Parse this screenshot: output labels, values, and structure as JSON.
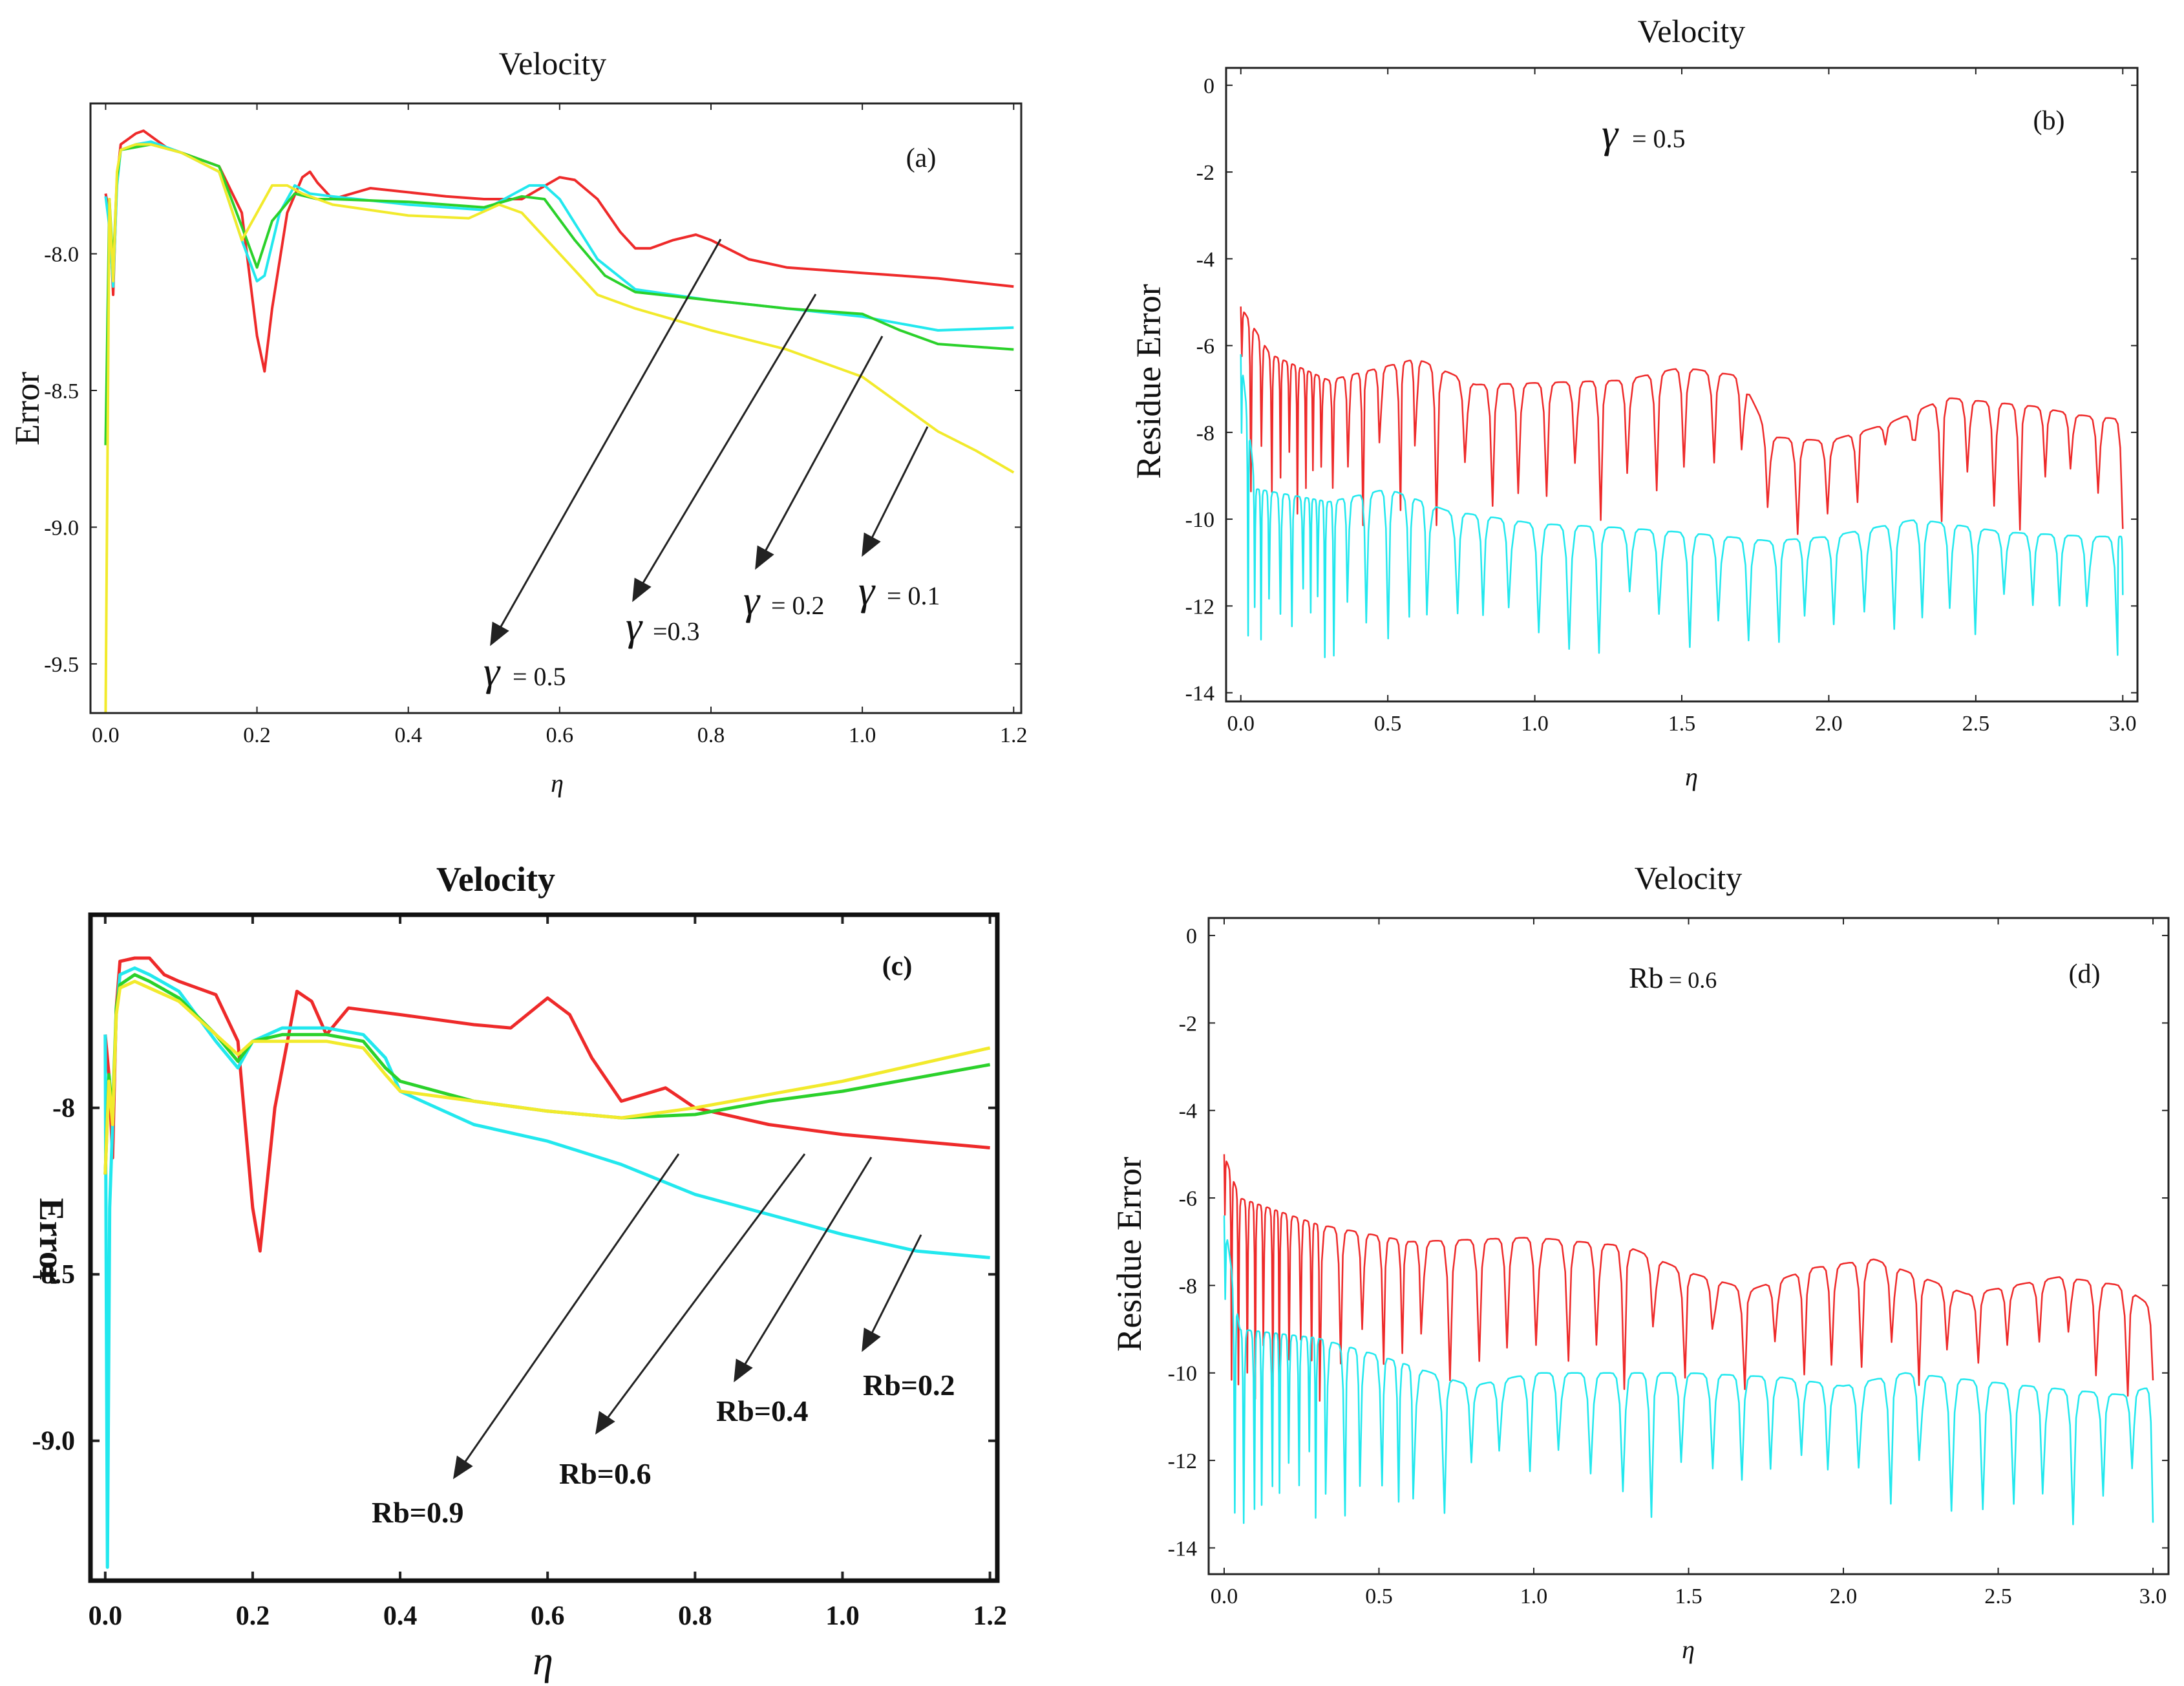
{
  "colors": {
    "red": "#ee2a2a",
    "cyan": "#22e8ee",
    "green": "#2bd12b",
    "yellow": "#f2ea2c",
    "arrow": "#222222",
    "frame": "#222222"
  },
  "chart_data": [
    {
      "panel": "(a)",
      "type": "line",
      "title": "Velocity",
      "xlabel": "η",
      "ylabel": "Error",
      "xlim": [
        -0.02,
        1.21
      ],
      "ylim": [
        -9.68,
        -7.45
      ],
      "xticks": [
        "0.0",
        "0.2",
        "0.4",
        "0.6",
        "0.8",
        "1.0",
        "1.2"
      ],
      "yticks": [
        "-8.0",
        "-8.5",
        "-9.0",
        "-9.5"
      ],
      "series": [
        {
          "name": "γ = 0.5",
          "color": "red",
          "x": [
            0.0,
            0.005,
            0.01,
            0.015,
            0.02,
            0.03,
            0.04,
            0.05,
            0.06,
            0.08,
            0.1,
            0.15,
            0.18,
            0.2,
            0.21,
            0.22,
            0.24,
            0.26,
            0.27,
            0.28,
            0.3,
            0.35,
            0.45,
            0.5,
            0.55,
            0.6,
            0.62,
            0.65,
            0.68,
            0.7,
            0.72,
            0.75,
            0.78,
            0.8,
            0.85,
            0.9,
            1.0,
            1.1,
            1.2
          ],
          "y": [
            -7.78,
            -7.85,
            -8.15,
            -7.72,
            -7.6,
            -7.58,
            -7.56,
            -7.55,
            -7.57,
            -7.61,
            -7.63,
            -7.68,
            -7.85,
            -8.3,
            -8.43,
            -8.2,
            -7.85,
            -7.72,
            -7.7,
            -7.74,
            -7.8,
            -7.76,
            -7.79,
            -7.8,
            -7.8,
            -7.72,
            -7.73,
            -7.8,
            -7.92,
            -7.98,
            -7.98,
            -7.95,
            -7.93,
            -7.95,
            -8.02,
            -8.05,
            -8.07,
            -8.09,
            -8.12
          ]
        },
        {
          "name": "γ = 0.3",
          "color": "cyan",
          "x": [
            0.0,
            0.005,
            0.01,
            0.015,
            0.02,
            0.04,
            0.06,
            0.1,
            0.15,
            0.18,
            0.2,
            0.21,
            0.23,
            0.25,
            0.27,
            0.3,
            0.4,
            0.5,
            0.56,
            0.58,
            0.6,
            0.65,
            0.7,
            0.8,
            0.9,
            1.0,
            1.1,
            1.2
          ],
          "y": [
            -7.79,
            -7.9,
            -8.12,
            -7.75,
            -7.62,
            -7.6,
            -7.59,
            -7.63,
            -7.7,
            -7.95,
            -8.1,
            -8.08,
            -7.85,
            -7.75,
            -7.78,
            -7.79,
            -7.82,
            -7.84,
            -7.75,
            -7.75,
            -7.8,
            -8.02,
            -8.13,
            -8.17,
            -8.2,
            -8.23,
            -8.28,
            -8.27
          ]
        },
        {
          "name": "γ = 0.2",
          "color": "green",
          "x": [
            0.0,
            0.005,
            0.01,
            0.015,
            0.02,
            0.04,
            0.06,
            0.1,
            0.15,
            0.18,
            0.2,
            0.22,
            0.25,
            0.28,
            0.3,
            0.4,
            0.5,
            0.55,
            0.58,
            0.62,
            0.66,
            0.7,
            0.8,
            0.9,
            1.0,
            1.05,
            1.1,
            1.2
          ],
          "y": [
            -8.7,
            -7.8,
            -8.05,
            -7.72,
            -7.62,
            -7.61,
            -7.6,
            -7.63,
            -7.68,
            -7.9,
            -8.05,
            -7.88,
            -7.78,
            -7.8,
            -7.8,
            -7.81,
            -7.83,
            -7.79,
            -7.8,
            -7.95,
            -8.08,
            -8.14,
            -8.17,
            -8.2,
            -8.22,
            -8.28,
            -8.33,
            -8.35
          ]
        },
        {
          "name": "γ = 0.1",
          "color": "yellow",
          "x": [
            0.0,
            0.005,
            0.01,
            0.015,
            0.02,
            0.04,
            0.06,
            0.1,
            0.15,
            0.18,
            0.2,
            0.22,
            0.24,
            0.26,
            0.3,
            0.4,
            0.48,
            0.52,
            0.55,
            0.6,
            0.65,
            0.7,
            0.8,
            0.9,
            1.0,
            1.05,
            1.1,
            1.15,
            1.2
          ],
          "y": [
            -9.68,
            -7.8,
            -8.1,
            -7.7,
            -7.62,
            -7.6,
            -7.6,
            -7.63,
            -7.7,
            -7.95,
            -7.85,
            -7.75,
            -7.75,
            -7.78,
            -7.82,
            -7.86,
            -7.87,
            -7.82,
            -7.85,
            -8.0,
            -8.15,
            -8.2,
            -8.28,
            -8.35,
            -8.45,
            -8.55,
            -8.65,
            -8.72,
            -8.8
          ]
        }
      ],
      "annotations": [
        {
          "symbol": "γ",
          "text": "= 0.5"
        },
        {
          "symbol": "γ",
          "text": "=0.3"
        },
        {
          "symbol": "γ",
          "text": "= 0.2"
        },
        {
          "symbol": "γ",
          "text": "= 0.1"
        }
      ],
      "tag": "(a)"
    },
    {
      "panel": "(b)",
      "type": "line",
      "title": "Velocity",
      "xlabel": "η",
      "ylabel": "Residue Error",
      "xlim": [
        -0.05,
        3.05
      ],
      "ylim": [
        -14.2,
        0.4
      ],
      "xticks": [
        "0.0",
        "0.5",
        "1.0",
        "1.5",
        "2.0",
        "2.5",
        "3.0"
      ],
      "yticks": [
        "0",
        "-2",
        "-4",
        "-6",
        "-8",
        "-10",
        "-12",
        "-14"
      ],
      "param_label": {
        "symbol": "γ",
        "text": "= 0.5"
      },
      "series": [
        {
          "name": "residue upper",
          "color": "red",
          "envelope": [
            [
              0.0,
              -5.1
            ],
            [
              0.1,
              -6.2
            ],
            [
              0.3,
              -6.8
            ],
            [
              0.6,
              -6.3
            ],
            [
              0.8,
              -6.9
            ],
            [
              1.3,
              -6.8
            ],
            [
              1.5,
              -6.5
            ],
            [
              1.7,
              -6.7
            ],
            [
              1.8,
              -8.1
            ],
            [
              2.0,
              -8.2
            ],
            [
              2.2,
              -7.8
            ],
            [
              2.4,
              -7.2
            ],
            [
              2.7,
              -7.4
            ],
            [
              2.85,
              -7.6
            ],
            [
              3.0,
              -7.7
            ]
          ],
          "dip_mean": -9.3,
          "dip_spread": 1.2
        },
        {
          "name": "residue lower",
          "color": "cyan",
          "envelope": [
            [
              0.0,
              -6.2
            ],
            [
              0.05,
              -9.3
            ],
            [
              0.3,
              -9.6
            ],
            [
              0.5,
              -9.3
            ],
            [
              0.7,
              -9.8
            ],
            [
              1.0,
              -10.1
            ],
            [
              1.3,
              -10.2
            ],
            [
              1.5,
              -10.3
            ],
            [
              1.8,
              -10.5
            ],
            [
              2.0,
              -10.4
            ],
            [
              2.3,
              -10.0
            ],
            [
              2.6,
              -10.3
            ],
            [
              2.9,
              -10.4
            ],
            [
              3.0,
              -10.4
            ]
          ],
          "dip_mean": -12.4,
          "dip_spread": 0.9
        }
      ],
      "tag": "(b)"
    },
    {
      "panel": "(c)",
      "type": "line",
      "title": "Velocity",
      "xlabel": "η",
      "ylabel": "Error",
      "xlim": [
        -0.02,
        1.21
      ],
      "ylim": [
        -9.42,
        -7.42
      ],
      "xticks": [
        "0.0",
        "0.2",
        "0.4",
        "0.6",
        "0.8",
        "1.0",
        "1.2"
      ],
      "yticks": [
        "-8",
        "-8.5",
        "-9.0"
      ],
      "series": [
        {
          "name": "Rb=0.9",
          "color": "red",
          "x": [
            0.0,
            0.005,
            0.01,
            0.015,
            0.02,
            0.04,
            0.06,
            0.08,
            0.1,
            0.15,
            0.18,
            0.2,
            0.21,
            0.23,
            0.26,
            0.28,
            0.3,
            0.33,
            0.4,
            0.5,
            0.55,
            0.6,
            0.63,
            0.66,
            0.7,
            0.73,
            0.76,
            0.8,
            0.9,
            1.0,
            1.1,
            1.2
          ],
          "y": [
            -7.78,
            -7.9,
            -8.15,
            -7.7,
            -7.56,
            -7.55,
            -7.55,
            -7.6,
            -7.62,
            -7.66,
            -7.8,
            -8.3,
            -8.43,
            -8.0,
            -7.65,
            -7.68,
            -7.78,
            -7.7,
            -7.72,
            -7.75,
            -7.76,
            -7.67,
            -7.72,
            -7.85,
            -7.98,
            -7.96,
            -7.94,
            -8.0,
            -8.05,
            -8.08,
            -8.1,
            -8.12
          ]
        },
        {
          "name": "Rb=0.6",
          "color": "cyan",
          "x": [
            0.0,
            0.003,
            0.006,
            0.01,
            0.015,
            0.02,
            0.04,
            0.06,
            0.1,
            0.15,
            0.18,
            0.2,
            0.24,
            0.3,
            0.35,
            0.38,
            0.4,
            0.5,
            0.6,
            0.7,
            0.8,
            0.9,
            1.0,
            1.1,
            1.2
          ],
          "y": [
            -7.78,
            -9.38,
            -8.3,
            -8.05,
            -7.72,
            -7.6,
            -7.58,
            -7.6,
            -7.65,
            -7.8,
            -7.88,
            -7.8,
            -7.76,
            -7.76,
            -7.78,
            -7.85,
            -7.95,
            -8.05,
            -8.1,
            -8.17,
            -8.26,
            -8.32,
            -8.38,
            -8.43,
            -8.45
          ]
        },
        {
          "name": "Rb=0.4",
          "color": "green",
          "x": [
            0.0,
            0.005,
            0.01,
            0.015,
            0.02,
            0.04,
            0.06,
            0.1,
            0.15,
            0.18,
            0.2,
            0.24,
            0.3,
            0.35,
            0.38,
            0.4,
            0.5,
            0.6,
            0.7,
            0.8,
            0.9,
            1.0,
            1.1,
            1.2
          ],
          "y": [
            -8.2,
            -7.9,
            -8.02,
            -7.7,
            -7.63,
            -7.6,
            -7.62,
            -7.67,
            -7.78,
            -7.86,
            -7.8,
            -7.78,
            -7.78,
            -7.8,
            -7.88,
            -7.92,
            -7.98,
            -8.01,
            -8.03,
            -8.02,
            -7.98,
            -7.95,
            -7.91,
            -7.87
          ]
        },
        {
          "name": "Rb=0.2",
          "color": "yellow",
          "x": [
            0.0,
            0.005,
            0.01,
            0.015,
            0.02,
            0.04,
            0.06,
            0.1,
            0.15,
            0.18,
            0.2,
            0.24,
            0.3,
            0.35,
            0.38,
            0.4,
            0.5,
            0.6,
            0.7,
            0.8,
            0.9,
            1.0,
            1.1,
            1.2
          ],
          "y": [
            -8.2,
            -7.92,
            -8.05,
            -7.72,
            -7.64,
            -7.62,
            -7.64,
            -7.68,
            -7.78,
            -7.84,
            -7.8,
            -7.8,
            -7.8,
            -7.82,
            -7.9,
            -7.95,
            -7.98,
            -8.01,
            -8.03,
            -8.0,
            -7.96,
            -7.92,
            -7.87,
            -7.82
          ]
        }
      ],
      "annotations": [
        {
          "text": "Rb=0.9"
        },
        {
          "text": "Rb=0.6"
        },
        {
          "text": "Rb=0.4"
        },
        {
          "text": "Rb=0.2"
        }
      ],
      "tag": "(c)"
    },
    {
      "panel": "(d)",
      "type": "line",
      "title": "Velocity",
      "xlabel": "η",
      "ylabel": "Residue Error",
      "xlim": [
        -0.05,
        3.05
      ],
      "ylim": [
        -14.6,
        0.4
      ],
      "xticks": [
        "0.0",
        "0.5",
        "1.0",
        "1.5",
        "2.0",
        "2.5",
        "3.0"
      ],
      "yticks": [
        "0",
        "-2",
        "-4",
        "-6",
        "-8",
        "-10",
        "-12",
        "-14"
      ],
      "param_label": {
        "symbol": "Rb",
        "text": "= 0.6"
      },
      "series": [
        {
          "name": "residue upper",
          "color": "red",
          "envelope": [
            [
              0.0,
              -5.0
            ],
            [
              0.05,
              -6.0
            ],
            [
              0.3,
              -6.6
            ],
            [
              0.6,
              -7.0
            ],
            [
              1.0,
              -6.9
            ],
            [
              1.3,
              -7.1
            ],
            [
              1.5,
              -7.7
            ],
            [
              1.7,
              -8.1
            ],
            [
              1.9,
              -7.6
            ],
            [
              2.1,
              -7.4
            ],
            [
              2.4,
              -8.2
            ],
            [
              2.7,
              -7.8
            ],
            [
              2.9,
              -8.0
            ],
            [
              3.0,
              -8.5
            ]
          ],
          "dip_mean": -9.8,
          "dip_spread": 0.9
        },
        {
          "name": "residue lower",
          "color": "cyan",
          "envelope": [
            [
              0.0,
              -6.4
            ],
            [
              0.05,
              -9.0
            ],
            [
              0.3,
              -9.2
            ],
            [
              0.5,
              -9.6
            ],
            [
              0.8,
              -10.3
            ],
            [
              1.0,
              -10.0
            ],
            [
              1.5,
              -10.0
            ],
            [
              1.8,
              -10.1
            ],
            [
              2.0,
              -10.3
            ],
            [
              2.2,
              -10.0
            ],
            [
              2.6,
              -10.3
            ],
            [
              2.9,
              -10.5
            ],
            [
              3.0,
              -10.3
            ]
          ],
          "dip_mean": -12.6,
          "dip_spread": 0.9
        }
      ],
      "tag": "(d)"
    }
  ]
}
